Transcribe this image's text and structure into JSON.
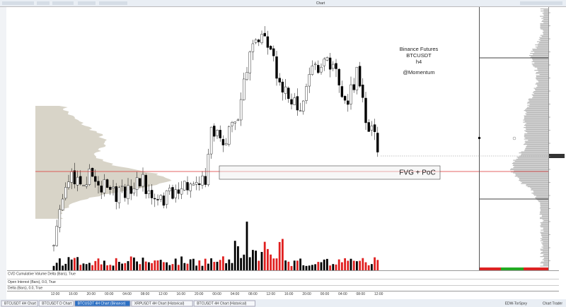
{
  "window": {
    "title": "Chart"
  },
  "annotation": {
    "lines": [
      "Binance Futures",
      "BTCUSDT",
      "h4",
      "@Momentum"
    ]
  },
  "zone_label": "FVG + PoC",
  "indicators": [
    "CVD  Cumulative Volume Delta (Bars), True",
    "Open Interest (Bars), 0.0, True",
    "Delta (Bars), 0.0, True"
  ],
  "time_axis": [
    "12:00",
    "16:00",
    "20:00",
    "00:00",
    "04:00",
    "08:00",
    "12:00",
    "16:00",
    "20:00",
    "00:00",
    "04:00",
    "08:00",
    "12:00",
    "16:00",
    "20:00",
    "00:00",
    "04:00",
    "08:00",
    "12:00"
  ],
  "tabs": [
    "BTCUSDT 4H Chart",
    "BTCUSDT D Chart",
    "BTCUSDT 4H Chart (Binance)",
    "XRPUSDT 4H Chart (Historical)",
    "BTCUSDT 4H Chart (Historical)"
  ],
  "status": [
    "EDW-TorSpxy",
    "Chart Trader"
  ]
}
